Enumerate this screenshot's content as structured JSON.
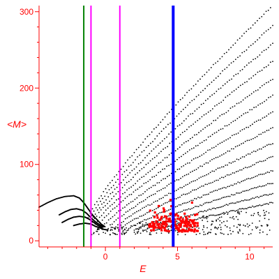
{
  "chart_data": {
    "type": "scatter",
    "xlabel": "E",
    "ylabel": "<M>",
    "xlim": [
      -4.6,
      11.6
    ],
    "ylim": [
      -8,
      308
    ],
    "xticks": [
      0,
      5,
      10
    ],
    "yticks": [
      0,
      100,
      200,
      300
    ],
    "xtick_labels": [
      "0",
      "5",
      "10"
    ],
    "ytick_labels": [
      "0",
      "100",
      "200",
      "300"
    ],
    "colors": {
      "axes": "#ff0000",
      "points": "#000000",
      "highlighted_points": "#ff0000",
      "green_line": "#008000",
      "magenta_lines": "#ff00ff",
      "blue_line": "#0000ff"
    },
    "vertical_lines": [
      {
        "x": -1.5,
        "color": "#008000"
      },
      {
        "x": -1.0,
        "color": "#ff00ff"
      },
      {
        "x": 1.0,
        "color": "#ff00ff"
      },
      {
        "x": 4.7,
        "color": "#0000ff",
        "thick": true
      }
    ],
    "series": [
      {
        "color": "#000000",
        "band": 1,
        "x_start": -1.2,
        "x_end": 11.6,
        "y_start": 30,
        "y_end": 308
      },
      {
        "color": "#000000",
        "band": 2,
        "x_start": -1.1,
        "x_end": 11.6,
        "y_start": 28,
        "y_end": 282
      },
      {
        "color": "#000000",
        "band": 3,
        "x_start": -1.0,
        "x_end": 11.6,
        "y_start": 26,
        "y_end": 258
      },
      {
        "color": "#000000",
        "band": 4,
        "x_start": -0.9,
        "x_end": 11.6,
        "y_start": 24,
        "y_end": 235
      },
      {
        "color": "#000000",
        "band": 5,
        "x_start": -0.7,
        "x_end": 11.6,
        "y_start": 22,
        "y_end": 212
      },
      {
        "color": "#000000",
        "band": 6,
        "x_start": -0.5,
        "x_end": 11.6,
        "y_start": 20,
        "y_end": 190
      },
      {
        "color": "#000000",
        "band": 7,
        "x_start": -0.2,
        "x_end": 11.6,
        "y_start": 18,
        "y_end": 168
      },
      {
        "color": "#000000",
        "band": 8,
        "x_start": 0.2,
        "x_end": 11.6,
        "y_start": 17,
        "y_end": 148
      },
      {
        "color": "#000000",
        "band": 9,
        "x_start": 0.6,
        "x_end": 11.6,
        "y_start": 16,
        "y_end": 128
      },
      {
        "color": "#000000",
        "band": 10,
        "x_start": 1.0,
        "x_end": 11.6,
        "y_start": 15,
        "y_end": 110
      },
      {
        "color": "#000000",
        "band": 11,
        "x_start": 1.5,
        "x_end": 11.6,
        "y_start": 14,
        "y_end": 92
      },
      {
        "color": "#000000",
        "band": 12,
        "x_start": 2.0,
        "x_end": 11.6,
        "y_start": 13,
        "y_end": 76
      },
      {
        "color": "#000000",
        "band": 13,
        "x_start": 2.6,
        "x_end": 11.6,
        "y_start": 13,
        "y_end": 62
      },
      {
        "color": "#000000",
        "band": 14,
        "x_start": 3.2,
        "x_end": 11.6,
        "y_start": 12,
        "y_end": 50
      }
    ],
    "low_energy_curves": [
      {
        "x": [
          -4.6,
          -4.0,
          -3.4,
          -2.8,
          -2.2,
          -1.8,
          -1.5,
          -1.2,
          -0.9,
          -0.6,
          -0.3,
          0.0
        ],
        "y": [
          44,
          50,
          55,
          58,
          59,
          56,
          50,
          42,
          34,
          28,
          22,
          18
        ]
      },
      {
        "x": [
          -3.2,
          -2.8,
          -2.4,
          -2.0,
          -1.6,
          -1.3,
          -1.0,
          -0.7,
          -0.4,
          -0.1
        ],
        "y": [
          34,
          38,
          41,
          42,
          40,
          36,
          30,
          25,
          21,
          18
        ]
      },
      {
        "x": [
          -3.0,
          -2.6,
          -2.2,
          -1.8,
          -1.4,
          -1.1,
          -0.8,
          -0.5,
          -0.2
        ],
        "y": [
          24,
          28,
          31,
          32,
          31,
          28,
          24,
          20,
          17
        ]
      },
      {
        "x": [
          -2.2,
          -1.8,
          -1.4,
          -1.0,
          -0.7,
          -0.4,
          -0.1,
          0.2
        ],
        "y": [
          20,
          22,
          23,
          22,
          19,
          17,
          15,
          14
        ]
      }
    ],
    "highlighted_cluster": {
      "x_range": [
        3.0,
        6.4
      ],
      "y_range": [
        12,
        58
      ],
      "approx_center": [
        4.7,
        24
      ]
    }
  }
}
